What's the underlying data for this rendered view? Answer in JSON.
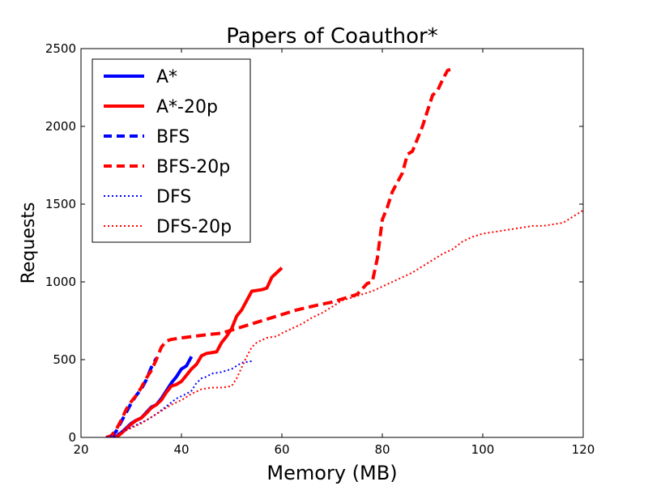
{
  "chart_data": {
    "type": "line",
    "title": "Papers of Coauthor*",
    "xlabel": "Memory (MB)",
    "ylabel": "Requests",
    "xlim": [
      20,
      120
    ],
    "ylim": [
      0,
      2500
    ],
    "xticks": [
      20,
      40,
      60,
      80,
      100,
      120
    ],
    "yticks": [
      0,
      500,
      1000,
      1500,
      2000,
      2500
    ],
    "grid": false,
    "legend_position": "top-left",
    "series": [
      {
        "name": "A*",
        "color": "#0000ff",
        "style": "solid",
        "points": [
          [
            25,
            0
          ],
          [
            27,
            5
          ],
          [
            28,
            30
          ],
          [
            29,
            60
          ],
          [
            30,
            90
          ],
          [
            31,
            110
          ],
          [
            32,
            125
          ],
          [
            33,
            160
          ],
          [
            34,
            195
          ],
          [
            35,
            210
          ],
          [
            36,
            250
          ],
          [
            37,
            300
          ],
          [
            38,
            350
          ],
          [
            39,
            390
          ],
          [
            40,
            440
          ],
          [
            41,
            460
          ],
          [
            42,
            520
          ]
        ]
      },
      {
        "name": "A*-20p",
        "color": "#ff0000",
        "style": "solid",
        "points": [
          [
            27,
            0
          ],
          [
            28,
            25
          ],
          [
            29,
            55
          ],
          [
            30,
            85
          ],
          [
            31,
            110
          ],
          [
            32,
            125
          ],
          [
            33,
            155
          ],
          [
            34,
            190
          ],
          [
            35,
            210
          ],
          [
            36,
            240
          ],
          [
            37,
            290
          ],
          [
            38,
            330
          ],
          [
            39,
            340
          ],
          [
            40,
            360
          ],
          [
            41,
            400
          ],
          [
            42,
            440
          ],
          [
            43,
            470
          ],
          [
            44,
            525
          ],
          [
            45,
            540
          ],
          [
            46,
            545
          ],
          [
            47,
            550
          ],
          [
            48,
            610
          ],
          [
            49,
            650
          ],
          [
            50,
            700
          ],
          [
            51,
            780
          ],
          [
            52,
            820
          ],
          [
            53,
            880
          ],
          [
            54,
            940
          ],
          [
            55,
            945
          ],
          [
            56,
            950
          ],
          [
            57,
            960
          ],
          [
            58,
            1030
          ],
          [
            59,
            1060
          ],
          [
            60,
            1090
          ]
        ]
      },
      {
        "name": "BFS",
        "color": "#0000ff",
        "style": "dashed",
        "points": [
          [
            26,
            0
          ],
          [
            27,
            40
          ],
          [
            28,
            100
          ],
          [
            29,
            160
          ],
          [
            30,
            220
          ],
          [
            31,
            270
          ],
          [
            32,
            310
          ],
          [
            33,
            370
          ],
          [
            34,
            450
          ],
          [
            35,
            510
          ]
        ]
      },
      {
        "name": "BFS-20p",
        "color": "#ff0000",
        "style": "dashed",
        "points": [
          [
            25,
            0
          ],
          [
            26,
            10
          ],
          [
            27,
            50
          ],
          [
            28,
            110
          ],
          [
            29,
            180
          ],
          [
            30,
            230
          ],
          [
            31,
            270
          ],
          [
            32,
            320
          ],
          [
            33,
            380
          ],
          [
            34,
            430
          ],
          [
            35,
            500
          ],
          [
            36,
            580
          ],
          [
            37,
            620
          ],
          [
            38,
            630
          ],
          [
            40,
            640
          ],
          [
            45,
            660
          ],
          [
            48,
            670
          ],
          [
            50,
            690
          ],
          [
            55,
            740
          ],
          [
            60,
            790
          ],
          [
            63,
            820
          ],
          [
            67,
            850
          ],
          [
            70,
            870
          ],
          [
            75,
            920
          ],
          [
            77,
            990
          ],
          [
            78,
            1000
          ],
          [
            79,
            1150
          ],
          [
            80,
            1400
          ],
          [
            81,
            1480
          ],
          [
            82,
            1580
          ],
          [
            83,
            1640
          ],
          [
            84,
            1700
          ],
          [
            85,
            1820
          ],
          [
            86,
            1840
          ],
          [
            87,
            1920
          ],
          [
            88,
            2000
          ],
          [
            89,
            2100
          ],
          [
            90,
            2200
          ],
          [
            91,
            2230
          ],
          [
            92,
            2300
          ],
          [
            93,
            2360
          ],
          [
            94,
            2370
          ]
        ]
      },
      {
        "name": "DFS",
        "color": "#0000ff",
        "style": "dotted",
        "points": [
          [
            25,
            0
          ],
          [
            27,
            20
          ],
          [
            29,
            50
          ],
          [
            31,
            80
          ],
          [
            33,
            110
          ],
          [
            35,
            150
          ],
          [
            37,
            200
          ],
          [
            39,
            250
          ],
          [
            41,
            280
          ],
          [
            42,
            300
          ],
          [
            43,
            350
          ],
          [
            44,
            380
          ],
          [
            45,
            390
          ],
          [
            46,
            410
          ],
          [
            48,
            420
          ],
          [
            50,
            440
          ],
          [
            52,
            480
          ],
          [
            54,
            490
          ]
        ]
      },
      {
        "name": "DFS-20p",
        "color": "#ff0000",
        "style": "dotted",
        "points": [
          [
            26,
            0
          ],
          [
            28,
            30
          ],
          [
            30,
            60
          ],
          [
            32,
            90
          ],
          [
            34,
            130
          ],
          [
            36,
            170
          ],
          [
            38,
            210
          ],
          [
            40,
            240
          ],
          [
            42,
            280
          ],
          [
            44,
            310
          ],
          [
            46,
            320
          ],
          [
            48,
            320
          ],
          [
            50,
            330
          ],
          [
            51,
            380
          ],
          [
            52,
            450
          ],
          [
            53,
            520
          ],
          [
            54,
            580
          ],
          [
            55,
            610
          ],
          [
            57,
            640
          ],
          [
            59,
            650
          ],
          [
            60,
            670
          ],
          [
            62,
            700
          ],
          [
            64,
            730
          ],
          [
            66,
            770
          ],
          [
            68,
            800
          ],
          [
            70,
            840
          ],
          [
            72,
            880
          ],
          [
            74,
            900
          ],
          [
            76,
            920
          ],
          [
            78,
            940
          ],
          [
            80,
            970
          ],
          [
            82,
            1000
          ],
          [
            84,
            1030
          ],
          [
            86,
            1060
          ],
          [
            88,
            1100
          ],
          [
            90,
            1140
          ],
          [
            92,
            1180
          ],
          [
            94,
            1210
          ],
          [
            96,
            1260
          ],
          [
            98,
            1290
          ],
          [
            100,
            1310
          ],
          [
            102,
            1320
          ],
          [
            104,
            1330
          ],
          [
            106,
            1340
          ],
          [
            108,
            1350
          ],
          [
            110,
            1360
          ],
          [
            112,
            1360
          ],
          [
            114,
            1370
          ],
          [
            116,
            1380
          ],
          [
            118,
            1420
          ],
          [
            120,
            1460
          ]
        ]
      }
    ]
  }
}
